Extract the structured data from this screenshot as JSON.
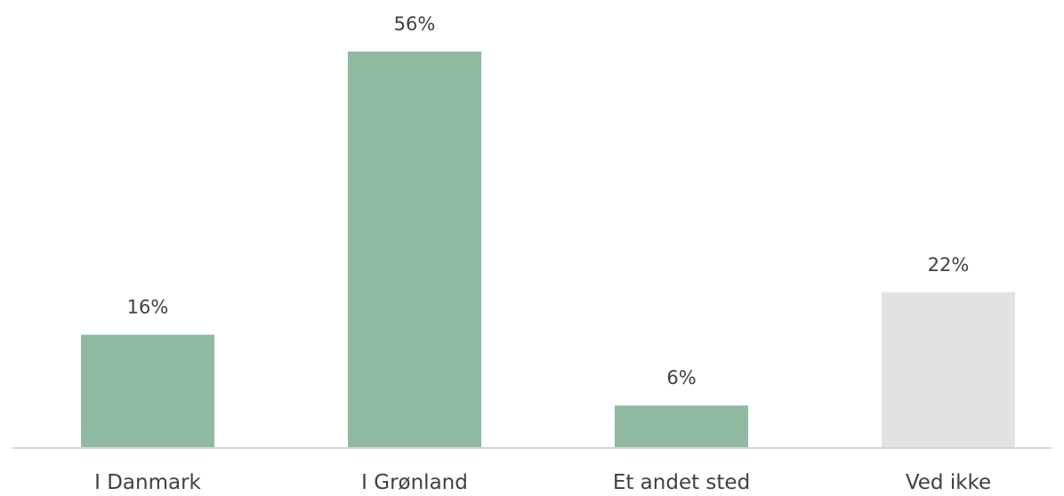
{
  "chart_data": {
    "type": "bar",
    "categories": [
      "I Danmark",
      "I Grønland",
      "Et andet sted",
      "Ved ikke"
    ],
    "values": [
      16,
      56,
      6,
      22
    ],
    "value_labels": [
      "16%",
      "56%",
      "6%",
      "22%"
    ],
    "unit": "%",
    "colors": [
      "#8fb9a0",
      "#8fb9a0",
      "#8fb9a0",
      "#e3e2e2"
    ],
    "axis_color": "#d6d6d6",
    "ylim": [
      0,
      56
    ],
    "grid": false,
    "legend": "none",
    "title": "",
    "xlabel": "",
    "ylabel": ""
  }
}
